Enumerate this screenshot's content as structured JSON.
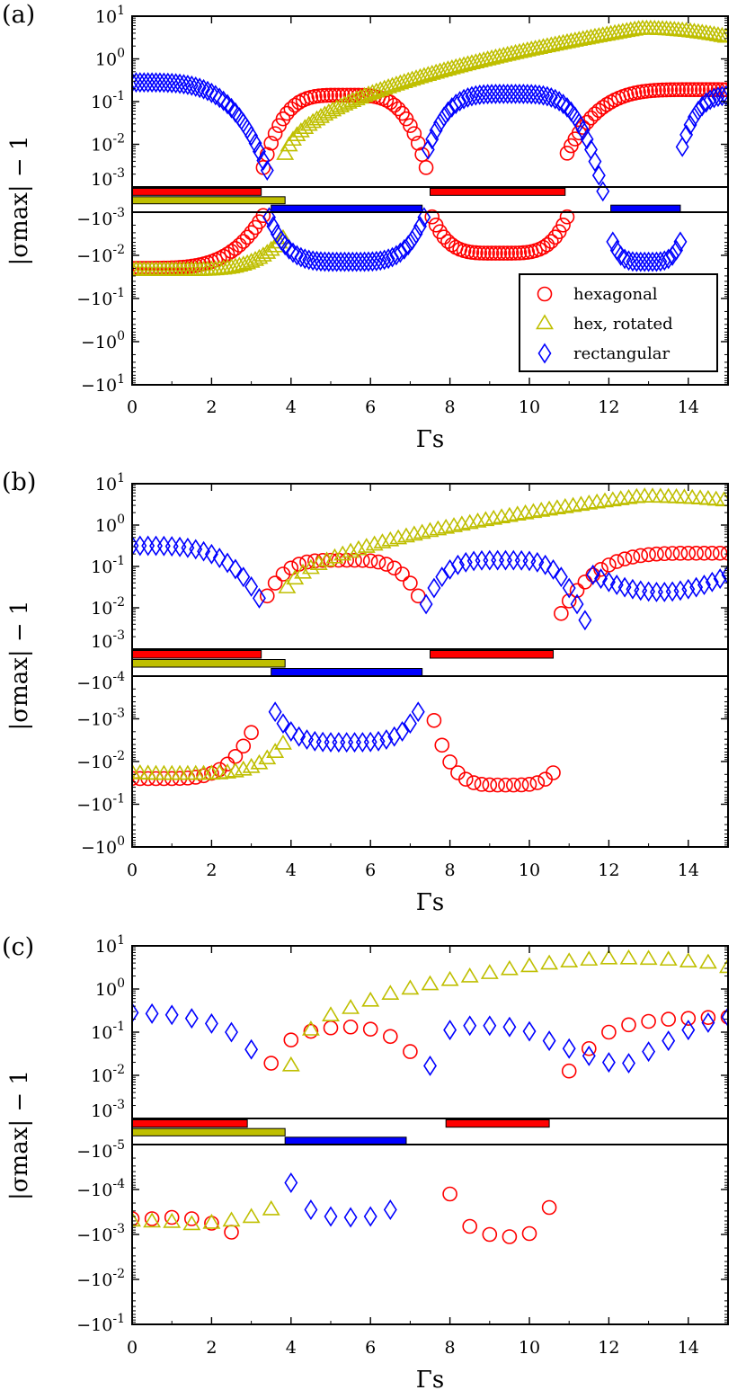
{
  "chart_data": [
    {
      "panel": "(a)",
      "type": "scatter",
      "xlabel": "Γs",
      "ylabel": "|σmax| − 1",
      "x_ticks": [
        "0",
        "2",
        "4",
        "6",
        "8",
        "10",
        "12",
        "14"
      ],
      "upper_y_ticks": [
        "10^1",
        "10^0",
        "10^-1",
        "10^-2",
        "10^-3"
      ],
      "lower_y_ticks": [
        "−10^-3",
        "−10^-2",
        "−10^-1",
        "−10^0",
        "−10^1"
      ],
      "xlim": [
        0,
        15
      ],
      "upper_ylim_log10": [
        -3,
        1
      ],
      "lower_ylim_neg_log10": [
        -3,
        1
      ],
      "stability_bars": [
        {
          "series": "hexagonal",
          "color": "#ff0000",
          "ranges": [
            [
              0,
              3.25
            ],
            [
              7.5,
              10.9
            ]
          ]
        },
        {
          "series": "hex, rotated",
          "color": "#bfbf00",
          "ranges": [
            [
              0,
              3.85
            ]
          ]
        },
        {
          "series": "rectangular",
          "color": "#0000ff",
          "ranges": [
            [
              3.5,
              7.3
            ],
            [
              12.05,
              13.8
            ]
          ]
        }
      ],
      "legend": {
        "placement": "lower-right",
        "entries": [
          "hexagonal",
          "hex, rotated",
          "rectangular"
        ]
      },
      "series": [
        {
          "name": "hexagonal",
          "marker": "circle",
          "color": "#ff0000",
          "curves": [
            {
              "x_start": 0.0,
              "x_end": 3.3,
              "step": 0.1,
              "fn": "lobe_neg",
              "center": 0.0,
              "half_width": 3.35,
              "peak_log": -1.7,
              "min_log": -3.0,
              "power": 0.45
            },
            {
              "x_start": 3.3,
              "x_end": 7.45,
              "step": 0.1,
              "fn": "lobe_pos",
              "center": 5.35,
              "half_width": 2.15,
              "peak_log": -0.85,
              "min_log": -2.9,
              "power": 0.5
            },
            {
              "x_start": 7.55,
              "x_end": 10.95,
              "step": 0.1,
              "fn": "lobe_neg",
              "center": 9.25,
              "half_width": 1.75,
              "peak_log": -2.05,
              "min_log": -3.0,
              "power": 0.4
            },
            {
              "x_start": 10.95,
              "x_end": 15.0,
              "step": 0.1,
              "fn": "lobe_pos",
              "center": 14.3,
              "half_width": 3.4,
              "peak_log": -0.72,
              "min_log": -2.3,
              "power": 0.45
            }
          ]
        },
        {
          "name": "hex, rotated",
          "marker": "triangle",
          "color": "#bfbf00",
          "curves": [
            {
              "x_start": 0.0,
              "x_end": 3.85,
              "step": 0.1,
              "fn": "lobe_neg",
              "center": 1.0,
              "half_width": 2.9,
              "peak_log": -1.65,
              "min_log": -2.5,
              "power": 0.5
            },
            {
              "x_start": 3.85,
              "x_end": 15.0,
              "step": 0.1,
              "fn": "rise",
              "x0": 3.8,
              "x_peak": 12.8,
              "start_log": -2.55,
              "peak_log": 0.7,
              "end_log": 0.5
            }
          ]
        },
        {
          "name": "rectangular",
          "marker": "diamond",
          "color": "#0000ff",
          "curves": [
            {
              "x_start": 0.0,
              "x_end": 3.45,
              "step": 0.1,
              "fn": "lobe_pos",
              "center": 0.0,
              "half_width": 3.55,
              "peak_log": -0.55,
              "min_log": -3.0,
              "power": 0.5
            },
            {
              "x_start": 3.45,
              "x_end": 7.35,
              "step": 0.1,
              "fn": "lobe_neg",
              "center": 5.4,
              "half_width": 2.0,
              "peak_log": -1.85,
              "min_log": -3.0,
              "power": 0.35
            },
            {
              "x_start": 7.45,
              "x_end": 11.9,
              "step": 0.1,
              "fn": "lobe_pos",
              "center": 9.5,
              "half_width": 2.35,
              "peak_log": -0.82,
              "min_log": -3.1,
              "power": 0.45
            },
            {
              "x_start": 12.1,
              "x_end": 13.8,
              "step": 0.1,
              "fn": "lobe_neg",
              "center": 12.95,
              "half_width": 1.0,
              "peak_log": -1.85,
              "min_log": -2.8,
              "power": 0.3
            },
            {
              "x_start": 13.85,
              "x_end": 15.0,
              "step": 0.1,
              "fn": "lobe_pos",
              "center": 15.4,
              "half_width": 1.7,
              "peak_log": -0.85,
              "min_log": -2.6,
              "power": 0.5
            }
          ]
        }
      ]
    },
    {
      "panel": "(b)",
      "type": "scatter",
      "xlabel": "Γs",
      "ylabel": "|σmax| − 1",
      "x_ticks": [
        "0",
        "2",
        "4",
        "6",
        "8",
        "10",
        "12",
        "14"
      ],
      "upper_y_ticks": [
        "10^1",
        "10^0",
        "10^-1",
        "10^-2",
        "10^-3"
      ],
      "lower_y_ticks": [
        "−10^-4",
        "−10^-3",
        "−10^-2",
        "−10^-1",
        "−10^0"
      ],
      "xlim": [
        0,
        15
      ],
      "upper_ylim_log10": [
        -3,
        1
      ],
      "lower_ylim_neg_log10": [
        -4,
        0
      ],
      "stability_bars": [
        {
          "series": "hexagonal",
          "color": "#ff0000",
          "ranges": [
            [
              0,
              3.25
            ],
            [
              7.5,
              10.6
            ]
          ]
        },
        {
          "series": "hex, rotated",
          "color": "#bfbf00",
          "ranges": [
            [
              0,
              3.85
            ]
          ]
        },
        {
          "series": "rectangular",
          "color": "#0000ff",
          "ranges": [
            [
              3.5,
              7.3
            ]
          ]
        }
      ],
      "series": [
        {
          "name": "hexagonal",
          "marker": "circle",
          "color": "#ff0000",
          "curves": [
            {
              "x_start": 0.0,
              "x_end": 3.0,
              "step": 0.2,
              "fn": "lobe_neg",
              "center": 0.6,
              "half_width": 2.8,
              "peak_log": -1.6,
              "min_log": -3.6,
              "power": 0.5
            },
            {
              "x_start": 3.4,
              "x_end": 7.2,
              "step": 0.2,
              "fn": "lobe_pos",
              "center": 5.3,
              "half_width": 2.2,
              "peak_log": -0.85,
              "min_log": -2.4,
              "power": 0.5
            },
            {
              "x_start": 7.6,
              "x_end": 10.6,
              "step": 0.2,
              "fn": "lobe_neg",
              "center": 9.4,
              "half_width": 1.95,
              "peak_log": -1.45,
              "min_log": -3.55,
              "power": 0.45
            },
            {
              "x_start": 10.8,
              "x_end": 15.0,
              "step": 0.2,
              "fn": "lobe_pos",
              "center": 14.6,
              "half_width": 3.95,
              "peak_log": -0.68,
              "min_log": -2.4,
              "power": 0.35
            }
          ]
        },
        {
          "name": "hex, rotated",
          "marker": "triangle",
          "color": "#bfbf00",
          "curves": [
            {
              "x_start": 0.0,
              "x_end": 3.8,
              "step": 0.2,
              "fn": "lobe_neg",
              "center": 1.2,
              "half_width": 2.9,
              "peak_log": -1.7,
              "min_log": -2.8,
              "power": 0.5
            },
            {
              "x_start": 3.9,
              "x_end": 15.0,
              "step": 0.2,
              "fn": "rise",
              "x0": 3.8,
              "x_peak": 12.8,
              "start_log": -1.85,
              "peak_log": 0.68,
              "end_log": 0.58
            }
          ]
        },
        {
          "name": "rectangular",
          "marker": "diamond",
          "color": "#0000ff",
          "curves": [
            {
              "x_start": 0.0,
              "x_end": 3.2,
              "step": 0.2,
              "fn": "lobe_pos",
              "center": 0.0,
              "half_width": 3.5,
              "peak_log": -0.5,
              "min_log": -2.3,
              "power": 0.55
            },
            {
              "x_start": 3.6,
              "x_end": 7.2,
              "step": 0.2,
              "fn": "lobe_neg",
              "center": 5.4,
              "half_width": 2.0,
              "peak_log": -2.45,
              "min_log": -3.55,
              "power": 0.45
            },
            {
              "x_start": 7.4,
              "x_end": 11.4,
              "step": 0.2,
              "fn": "lobe_pos",
              "center": 9.3,
              "half_width": 2.05,
              "peak_log": -0.85,
              "min_log": -2.3,
              "power": 0.45
            },
            {
              "x_start": 11.6,
              "x_end": 15.0,
              "step": 0.2,
              "fn": "valley",
              "center": 13.3,
              "half_width": 1.9,
              "low_log": -1.62,
              "high_log": -1.1
            }
          ]
        }
      ]
    },
    {
      "panel": "(c)",
      "type": "scatter",
      "xlabel": "Γs",
      "ylabel": "|σmax| − 1",
      "x_ticks": [
        "0",
        "2",
        "4",
        "6",
        "8",
        "10",
        "12",
        "14"
      ],
      "upper_y_ticks": [
        "10^1",
        "10^0",
        "10^-1",
        "10^-2",
        "10^-3"
      ],
      "lower_y_ticks": [
        "−10^-5",
        "−10^-4",
        "−10^-3",
        "−10^-2",
        "−10^-1"
      ],
      "xlim": [
        0,
        15
      ],
      "upper_ylim_log10": [
        -3,
        1
      ],
      "lower_ylim_neg_log10": [
        -5,
        -1
      ],
      "stability_bars": [
        {
          "series": "hexagonal",
          "color": "#ff0000",
          "ranges": [
            [
              0,
              2.9
            ],
            [
              7.9,
              10.5
            ]
          ]
        },
        {
          "series": "hex, rotated",
          "color": "#bfbf00",
          "ranges": [
            [
              0,
              3.85
            ]
          ]
        },
        {
          "series": "rectangular",
          "color": "#0000ff",
          "ranges": [
            [
              3.85,
              6.9
            ]
          ]
        }
      ],
      "series": [
        {
          "name": "hexagonal",
          "marker": "circle",
          "color": "#ff0000",
          "points": [
            [
              0.0,
              "neg",
              -3.35
            ],
            [
              0.5,
              "neg",
              -3.35
            ],
            [
              1.0,
              "neg",
              -3.38
            ],
            [
              1.5,
              "neg",
              -3.35
            ],
            [
              2.0,
              "neg",
              -3.25
            ],
            [
              2.5,
              "neg",
              -3.05
            ],
            [
              3.5,
              "pos",
              -1.72
            ],
            [
              4.0,
              "pos",
              -1.18
            ],
            [
              4.5,
              "pos",
              -0.98
            ],
            [
              5.0,
              "pos",
              -0.9
            ],
            [
              5.5,
              "pos",
              -0.88
            ],
            [
              6.0,
              "pos",
              -0.93
            ],
            [
              6.5,
              "pos",
              -1.1
            ],
            [
              7.0,
              "pos",
              -1.45
            ],
            [
              8.0,
              "neg",
              -3.9
            ],
            [
              8.5,
              "neg",
              -3.18
            ],
            [
              9.0,
              "neg",
              -3.0
            ],
            [
              9.5,
              "neg",
              -2.95
            ],
            [
              10.0,
              "neg",
              -3.02
            ],
            [
              10.5,
              "neg",
              -3.6
            ],
            [
              11.0,
              "pos",
              -1.9
            ],
            [
              11.5,
              "pos",
              -1.38
            ],
            [
              12.0,
              "pos",
              -1.0
            ],
            [
              12.5,
              "pos",
              -0.83
            ],
            [
              13.0,
              "pos",
              -0.75
            ],
            [
              13.5,
              "pos",
              -0.7
            ],
            [
              14.0,
              "pos",
              -0.68
            ],
            [
              14.5,
              "pos",
              -0.66
            ],
            [
              15.0,
              "pos",
              -0.65
            ]
          ]
        },
        {
          "name": "hex, rotated",
          "marker": "triangle",
          "color": "#bfbf00",
          "points": [
            [
              0.0,
              "neg",
              -3.3
            ],
            [
              0.5,
              "neg",
              -3.28
            ],
            [
              1.0,
              "neg",
              -3.27
            ],
            [
              1.5,
              "neg",
              -3.22
            ],
            [
              2.0,
              "neg",
              -3.25
            ],
            [
              2.5,
              "neg",
              -3.3
            ],
            [
              3.0,
              "neg",
              -3.38
            ],
            [
              3.5,
              "neg",
              -3.55
            ],
            [
              4.0,
              "pos",
              -1.78
            ],
            [
              4.5,
              "pos",
              -0.95
            ],
            [
              5.0,
              "pos",
              -0.62
            ],
            [
              5.5,
              "pos",
              -0.45
            ],
            [
              6.0,
              "pos",
              -0.28
            ],
            [
              6.5,
              "pos",
              -0.12
            ],
            [
              7.0,
              "pos",
              0.0
            ],
            [
              7.5,
              "pos",
              0.1
            ],
            [
              8.0,
              "pos",
              0.2
            ],
            [
              8.5,
              "pos",
              0.28
            ],
            [
              9.0,
              "pos",
              0.36
            ],
            [
              9.5,
              "pos",
              0.45
            ],
            [
              10.0,
              "pos",
              0.52
            ],
            [
              10.5,
              "pos",
              0.58
            ],
            [
              11.0,
              "pos",
              0.63
            ],
            [
              11.5,
              "pos",
              0.67
            ],
            [
              12.0,
              "pos",
              0.7
            ],
            [
              12.5,
              "pos",
              0.7
            ],
            [
              13.0,
              "pos",
              0.69
            ],
            [
              13.5,
              "pos",
              0.67
            ],
            [
              14.0,
              "pos",
              0.63
            ],
            [
              14.5,
              "pos",
              0.6
            ],
            [
              15.0,
              "pos",
              0.5
            ]
          ]
        },
        {
          "name": "rectangular",
          "marker": "diamond",
          "color": "#0000ff",
          "points": [
            [
              0.0,
              "pos",
              -0.55
            ],
            [
              0.5,
              "pos",
              -0.57
            ],
            [
              1.0,
              "pos",
              -0.6
            ],
            [
              1.5,
              "pos",
              -0.68
            ],
            [
              2.0,
              "pos",
              -0.8
            ],
            [
              2.5,
              "pos",
              -1.0
            ],
            [
              3.0,
              "pos",
              -1.4
            ],
            [
              4.0,
              "neg",
              -4.15
            ],
            [
              4.5,
              "neg",
              -3.55
            ],
            [
              5.0,
              "neg",
              -3.4
            ],
            [
              5.5,
              "neg",
              -3.38
            ],
            [
              6.0,
              "neg",
              -3.4
            ],
            [
              6.5,
              "neg",
              -3.55
            ],
            [
              7.5,
              "pos",
              -1.78
            ],
            [
              8.0,
              "pos",
              -0.95
            ],
            [
              8.5,
              "pos",
              -0.85
            ],
            [
              9.0,
              "pos",
              -0.85
            ],
            [
              9.5,
              "pos",
              -0.88
            ],
            [
              10.0,
              "pos",
              -0.98
            ],
            [
              10.5,
              "pos",
              -1.2
            ],
            [
              11.0,
              "pos",
              -1.38
            ],
            [
              11.5,
              "pos",
              -1.55
            ],
            [
              12.0,
              "pos",
              -1.7
            ],
            [
              12.5,
              "pos",
              -1.72
            ],
            [
              13.0,
              "pos",
              -1.45
            ],
            [
              13.5,
              "pos",
              -1.2
            ],
            [
              14.0,
              "pos",
              -0.95
            ],
            [
              14.5,
              "pos",
              -0.78
            ],
            [
              15.0,
              "pos",
              -0.65
            ]
          ]
        }
      ]
    }
  ]
}
